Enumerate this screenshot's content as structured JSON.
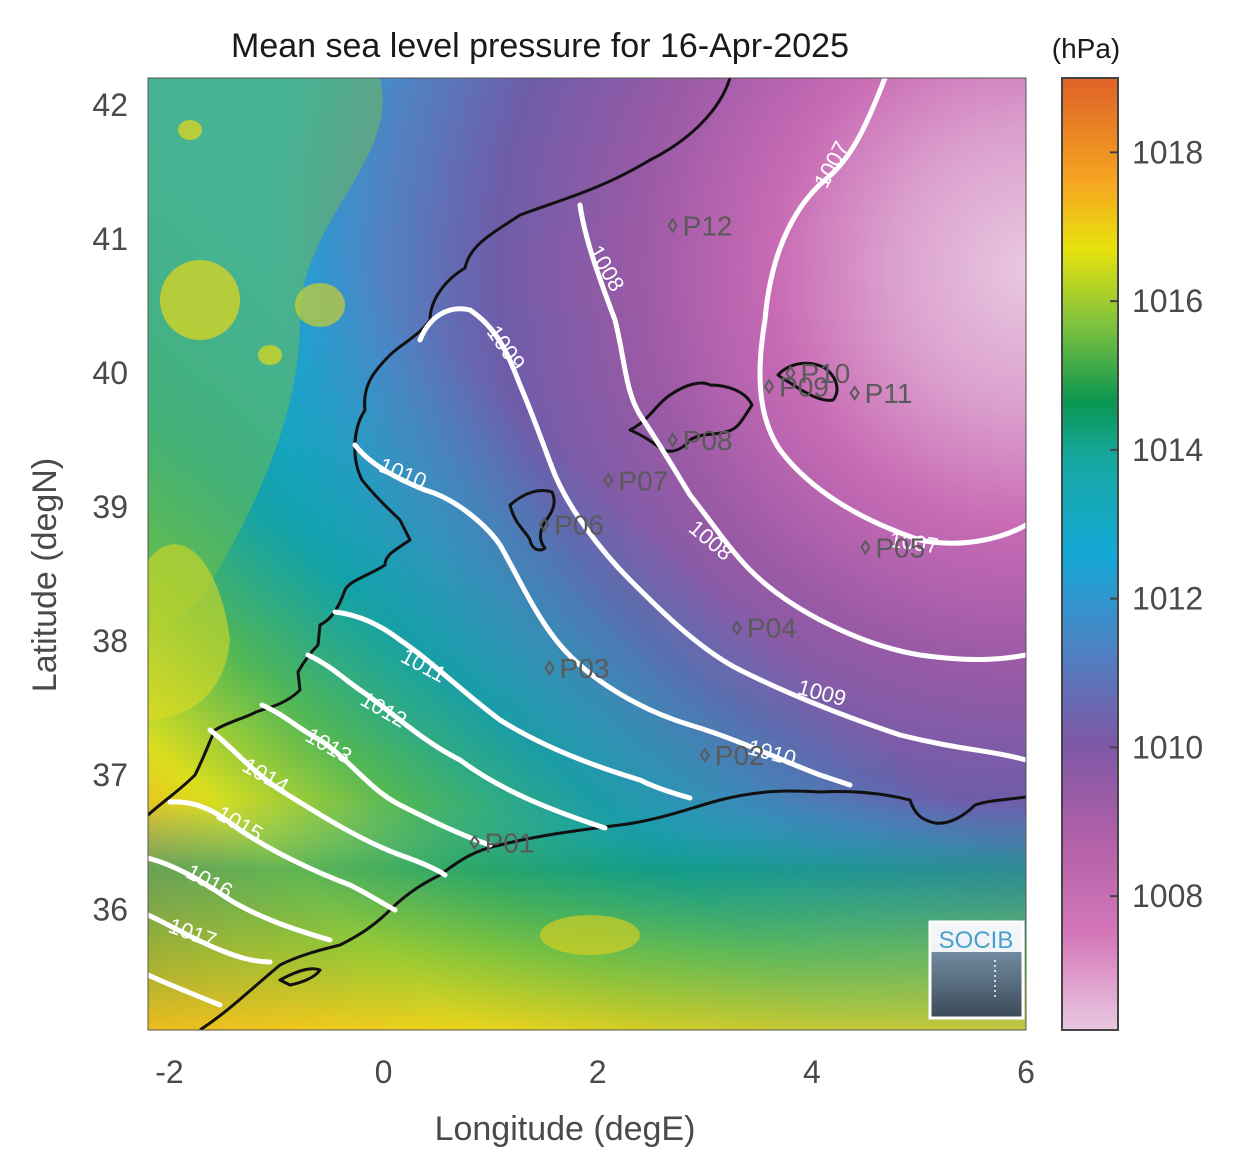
{
  "title": "Mean sea level pressure for 16-Apr-2025",
  "xlabel": "Longitude (degE)",
  "ylabel": "Latitude (degN)",
  "colorbar_unit": "(hPa)",
  "logo_text": "SOCIB",
  "chart_data": {
    "type": "heatmap",
    "xlim": [
      -2.2,
      6.0
    ],
    "ylim": [
      35.1,
      42.2
    ],
    "x_ticks": [
      "-2",
      "0",
      "2",
      "4",
      "6"
    ],
    "x_tick_values": [
      -2,
      0,
      2,
      4,
      6
    ],
    "y_ticks": [
      "42",
      "41",
      "40",
      "39",
      "38",
      "37",
      "36"
    ],
    "y_tick_values": [
      42,
      41,
      40,
      39,
      38,
      37,
      36
    ],
    "colorbar_range": [
      1006.2,
      1019.0
    ],
    "colorbar_ticks": [
      "1018",
      "1016",
      "1014",
      "1012",
      "1010",
      "1008"
    ],
    "colorbar_tick_values": [
      1018,
      1016,
      1014,
      1012,
      1010,
      1008
    ],
    "contour_levels": [
      "1007",
      "1008",
      "1009",
      "1010",
      "1011",
      "1012",
      "1013",
      "1014",
      "1015",
      "1016",
      "1017"
    ],
    "stations": [
      {
        "name": "P01",
        "lon": 0.85,
        "lat": 36.5
      },
      {
        "name": "P02",
        "lon": 3.0,
        "lat": 37.15
      },
      {
        "name": "P03",
        "lon": 1.55,
        "lat": 37.8
      },
      {
        "name": "P04",
        "lon": 3.3,
        "lat": 38.1
      },
      {
        "name": "P05",
        "lon": 4.5,
        "lat": 38.7
      },
      {
        "name": "P06",
        "lon": 1.5,
        "lat": 38.87
      },
      {
        "name": "P07",
        "lon": 2.1,
        "lat": 39.2
      },
      {
        "name": "P08",
        "lon": 2.7,
        "lat": 39.5
      },
      {
        "name": "P09",
        "lon": 3.6,
        "lat": 39.9
      },
      {
        "name": "P10",
        "lon": 3.8,
        "lat": 40.0
      },
      {
        "name": "P11",
        "lon": 4.4,
        "lat": 39.85
      },
      {
        "name": "P12",
        "lon": 2.7,
        "lat": 41.1
      }
    ]
  }
}
